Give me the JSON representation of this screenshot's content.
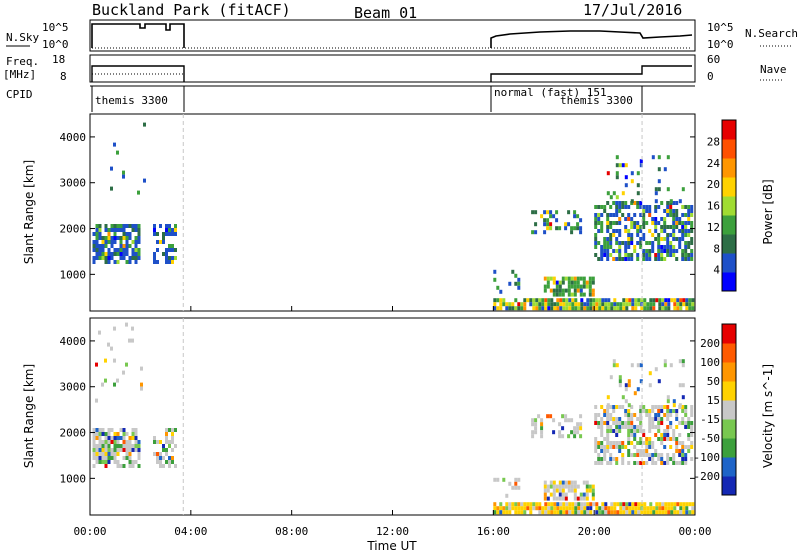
{
  "header": {
    "title": "Buckland Park (fitACF)",
    "beam": "Beam 01",
    "date": "17/Jul/2016"
  },
  "top_panels": {
    "nsky_label": "N.Sky",
    "nsearch_label": "N.Search",
    "nsky_ticks": [
      "10^5",
      "10^0"
    ],
    "nsearch_ticks": [
      "10^5",
      "10^0"
    ],
    "freq_label_1": "Freq.",
    "freq_label_2": "[MHz]",
    "freq_ticks": [
      "18",
      "8"
    ],
    "nave_label": "Nave",
    "nave_ticks": [
      "60",
      "0"
    ],
    "cpid_label": "CPID",
    "cpid_segments": [
      "themis 3300",
      "normal (fast) 151",
      "themis 3300"
    ]
  },
  "chart_data": [
    {
      "type": "heatmap",
      "panel": "power",
      "ylabel": "Slant Range [km]",
      "xlabel": "",
      "ylim": [
        200,
        4500
      ],
      "yticks": [
        "4000",
        "3000",
        "2000",
        "1000"
      ],
      "colorbar_label": "Power [dB]",
      "colorbar_ticks": [
        "28",
        "24",
        "20",
        "16",
        "12",
        "8",
        "4"
      ],
      "colorbar_colors": [
        "#0000ff",
        "#1e50c8",
        "#2d6e46",
        "#3ca03c",
        "#a0dc32",
        "#ffd200",
        "#ff9600",
        "#ff5000",
        "#e60000"
      ]
    },
    {
      "type": "heatmap",
      "panel": "velocity",
      "ylabel": "Slant Range [km]",
      "xlabel": "Time UT",
      "ylim": [
        200,
        4500
      ],
      "yticks": [
        "4000",
        "3000",
        "2000",
        "1000"
      ],
      "colorbar_label": "Velocity [m s^-1]",
      "colorbar_ticks": [
        "200",
        "100",
        "50",
        "15",
        "-15",
        "-50",
        "-100",
        "-200"
      ],
      "colorbar_colors": [
        "#1428b4",
        "#1e64c8",
        "#3ca03c",
        "#78c850",
        "#c8c8c8",
        "#ffd200",
        "#ff9600",
        "#ff5a00",
        "#e60000"
      ],
      "xticks": [
        "00:00",
        "04:00",
        "08:00",
        "12:00",
        "16:00",
        "20:00",
        "00:00"
      ]
    }
  ]
}
